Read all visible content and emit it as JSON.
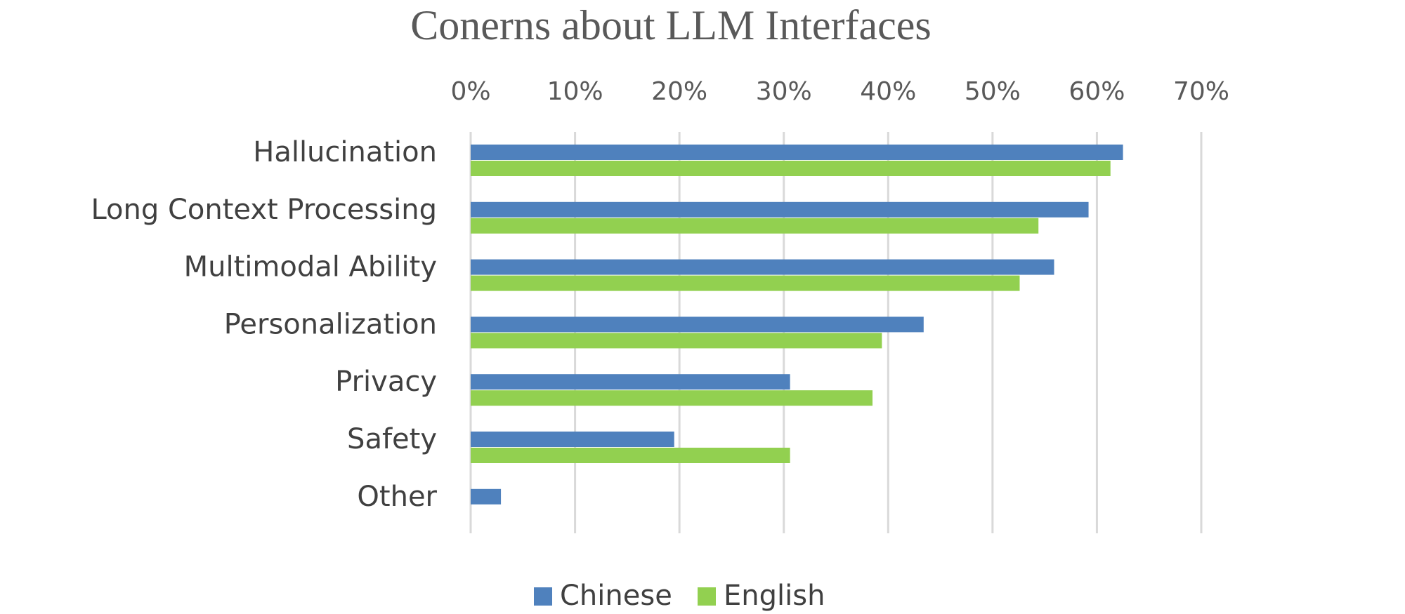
{
  "chart_data": {
    "type": "bar",
    "orientation": "horizontal",
    "title": "Conerns about LLM Interfaces",
    "categories": [
      "Hallucination",
      "Long Context Processing",
      "Multimodal Ability",
      "Personalization",
      "Privacy",
      "Safety",
      "Other"
    ],
    "series": [
      {
        "name": "Chinese",
        "color": "#4f81bd",
        "values": [
          62.5,
          59.2,
          55.9,
          43.4,
          30.6,
          19.5,
          2.9
        ]
      },
      {
        "name": "English",
        "color": "#92d050",
        "values": [
          61.3,
          54.4,
          52.6,
          39.4,
          38.5,
          30.6,
          0
        ]
      }
    ],
    "xlim": [
      0,
      70
    ],
    "xticks": [
      "0%",
      "10%",
      "20%",
      "30%",
      "40%",
      "50%",
      "60%",
      "70%"
    ],
    "x_axis_position": "top",
    "grid": true,
    "legend": "bottom"
  }
}
